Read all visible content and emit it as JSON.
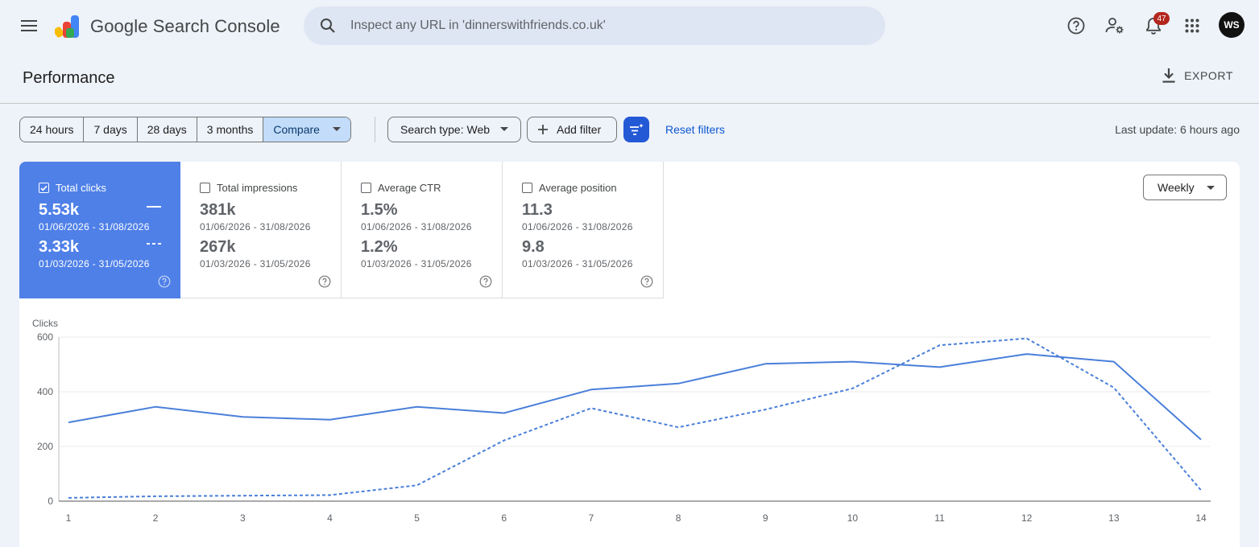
{
  "app": {
    "name": "Google Search Console",
    "search_placeholder": "Inspect any URL in 'dinnerswithfriends.co.uk'",
    "notification_count": "47",
    "avatar_initials": "WS"
  },
  "page": {
    "title": "Performance",
    "export_label": "EXPORT"
  },
  "filters": {
    "date_ranges": [
      "24 hours",
      "7 days",
      "28 days",
      "3 months"
    ],
    "compare_label": "Compare",
    "search_type_label": "Search type: Web",
    "add_filter_label": "Add filter",
    "reset_label": "Reset filters",
    "last_update": "Last update: 6 hours ago"
  },
  "metrics": [
    {
      "label": "Total clicks",
      "value1": "5.53k",
      "range1": "01/06/2026 - 31/08/2026",
      "value2": "3.33k",
      "range2": "01/03/2026 - 31/05/2026",
      "checked": true
    },
    {
      "label": "Total impressions",
      "value1": "381k",
      "range1": "01/06/2026 - 31/08/2026",
      "value2": "267k",
      "range2": "01/03/2026 - 31/05/2026",
      "checked": false
    },
    {
      "label": "Average CTR",
      "value1": "1.5%",
      "range1": "01/06/2026 - 31/08/2026",
      "value2": "1.2%",
      "range2": "01/03/2026 - 31/05/2026",
      "checked": false
    },
    {
      "label": "Average position",
      "value1": "11.3",
      "range1": "01/06/2026 - 31/08/2026",
      "value2": "9.8",
      "range2": "01/03/2026 - 31/05/2026",
      "checked": false
    }
  ],
  "granularity": "Weekly",
  "colors": {
    "accent": "#4f80e8",
    "line": "#4a7fd9",
    "link": "#0b57d0",
    "compare_active": "#c2dcf9"
  },
  "chart_data": {
    "type": "line",
    "ylabel": "Clicks",
    "ylim": [
      0,
      600
    ],
    "yticks": [
      0,
      200,
      400,
      600
    ],
    "x": [
      1,
      2,
      3,
      4,
      5,
      6,
      7,
      8,
      9,
      10,
      11,
      12,
      13,
      14
    ],
    "series": [
      {
        "style": "solid",
        "values": [
          288,
          345,
          308,
          298,
          345,
          322,
          408,
          430,
          502,
          510,
          490,
          538,
          510,
          225
        ]
      },
      {
        "style": "dashed",
        "values": [
          12,
          18,
          20,
          22,
          58,
          222,
          340,
          270,
          335,
          412,
          570,
          595,
          415,
          40
        ]
      }
    ],
    "grid": true
  }
}
